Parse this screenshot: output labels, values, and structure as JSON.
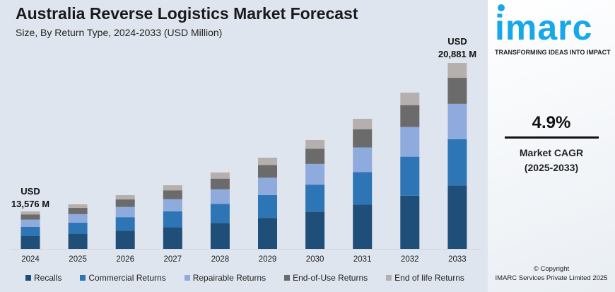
{
  "title": "Australia Reverse Logistics Market Forecast",
  "subtitle": "Size, By Return Type, 2024-2033 (USD Million)",
  "annotations": {
    "start": {
      "line1": "USD",
      "line2": "13,576 M"
    },
    "end": {
      "line1": "USD",
      "line2": "20,881 M"
    }
  },
  "side": {
    "logo": "imarc",
    "tagline": "TRANSFORMING IDEAS INTO IMPACT",
    "cagr_value": "4.9%",
    "cagr_label": "Market CAGR",
    "cagr_period": "(2025-2033)",
    "copyright": "© Copyright",
    "company": "IMARC Services Private Limited 2025"
  },
  "chart_data": {
    "type": "bar",
    "stacked": true,
    "title": "Australia Reverse Logistics Market Forecast",
    "subtitle": "Size, By Return Type, 2024-2033 (USD Million)",
    "categories": [
      "2024",
      "2025",
      "2026",
      "2027",
      "2028",
      "2029",
      "2030",
      "2031",
      "2032",
      "2033"
    ],
    "totals": [
      13576,
      13924,
      14376,
      14863,
      15489,
      16220,
      17090,
      18133,
      19421,
      20881
    ],
    "series": [
      {
        "name": "Recalls",
        "color": "#1f4e79",
        "values": [
          4616,
          4734,
          4888,
          5053,
          5266,
          5515,
          5811,
          6165,
          6603,
          7100
        ]
      },
      {
        "name": "Commercial Returns",
        "color": "#2e75b6",
        "values": [
          3394,
          3481,
          3594,
          3716,
          3872,
          4055,
          4272,
          4533,
          4855,
          5220
        ]
      },
      {
        "name": "Repairable Returns",
        "color": "#8faadc",
        "values": [
          2579,
          2646,
          2731,
          2824,
          2943,
          3082,
          3247,
          3445,
          3690,
          3967
        ]
      },
      {
        "name": "End-of-Use Returns",
        "color": "#6b6b6b",
        "values": [
          1901,
          1949,
          2013,
          2081,
          2168,
          2271,
          2393,
          2539,
          2719,
          2923
        ]
      },
      {
        "name": "End of life Returns",
        "color": "#b5b0ae",
        "values": [
          1086,
          1114,
          1150,
          1189,
          1240,
          1297,
          1367,
          1451,
          1554,
          1671
        ]
      }
    ],
    "legend": "bottom",
    "grid": false,
    "y_axis_shown": false
  }
}
